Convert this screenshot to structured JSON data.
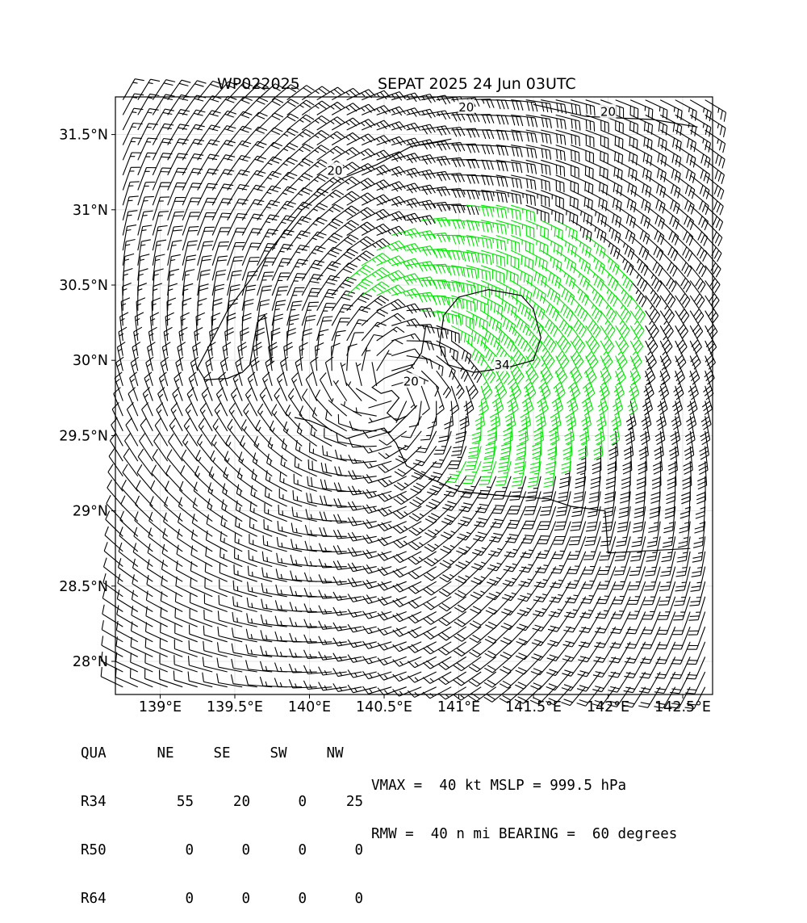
{
  "title_left": "WP022025",
  "title_right": "SEPAT 2025 24 Jun 03UTC",
  "quadrant_table": {
    "header": [
      "QUA",
      "NE",
      "SE",
      "SW",
      "NW"
    ],
    "rows": [
      {
        "label": "R34",
        "values": [
          "55",
          "20",
          "0",
          "25"
        ]
      },
      {
        "label": "R50",
        "values": [
          "0",
          "0",
          "0",
          "0"
        ]
      },
      {
        "label": "R64",
        "values": [
          "0",
          "0",
          "0",
          "0"
        ]
      }
    ]
  },
  "stats": {
    "line1": "VMAX =  40 kt MSLP = 999.5 hPa",
    "line2": "RMW =  40 n mi BEARING =  60 degrees"
  },
  "colors": {
    "barb_below_34": "#000000",
    "barb_34_to_50": "#00e400",
    "barb_50_to_64": "#f0b820",
    "contour": "#000000",
    "grid": "#dddddd"
  },
  "chart_data": {
    "type": "wind-barb-map",
    "storm_id": "WP022025",
    "storm_name": "SEPAT",
    "valid_time": "2025 24 Jun 03UTC",
    "units": "kt",
    "xlim": [
      138.7,
      142.7
    ],
    "ylim": [
      27.78,
      31.75
    ],
    "x_ticks": [
      139,
      139.5,
      140,
      140.5,
      141,
      141.5,
      142,
      142.5
    ],
    "x_tick_labels": [
      "139°E",
      "139.5°E",
      "140°E",
      "140.5°E",
      "141°E",
      "141.5°E",
      "142°E",
      "142.5°E"
    ],
    "y_ticks": [
      28,
      28.5,
      29,
      29.5,
      30,
      30.5,
      31,
      31.5
    ],
    "y_tick_labels": [
      "28°N",
      "28.5°N",
      "29°N",
      "29.5°N",
      "30°N",
      "30.5°N",
      "31°N",
      "31.5°N"
    ],
    "grid": true,
    "center": {
      "lon": 140.55,
      "lat": 29.82
    },
    "barb_spacing_deg": 0.1,
    "vmax_kt": 40,
    "mslp_hpa": 999.5,
    "rmw_nmi": 40,
    "bearing_deg": 60,
    "contour_levels": [
      20,
      34
    ],
    "contour_labels": [
      {
        "text": "20",
        "lon": 141.05,
        "lat": 31.68
      },
      {
        "text": "20",
        "lon": 142.0,
        "lat": 31.65
      },
      {
        "text": "20",
        "lon": 140.17,
        "lat": 31.26
      },
      {
        "text": "20",
        "lon": 140.68,
        "lat": 29.86
      },
      {
        "text": "34",
        "lon": 141.29,
        "lat": 29.97
      }
    ],
    "contour_34": [
      [
        141.0,
        30.42
      ],
      [
        141.2,
        30.47
      ],
      [
        141.42,
        30.43
      ],
      [
        141.5,
        30.34
      ],
      [
        141.55,
        30.15
      ],
      [
        141.5,
        30.0
      ],
      [
        141.32,
        29.95
      ],
      [
        141.1,
        29.92
      ],
      [
        140.93,
        29.97
      ],
      [
        140.87,
        30.1
      ],
      [
        140.9,
        30.3
      ]
    ],
    "contour_20_west": [
      [
        140.95,
        31.47
      ],
      [
        140.68,
        31.42
      ],
      [
        140.45,
        31.3
      ],
      [
        140.2,
        31.2
      ],
      [
        139.95,
        31.0
      ],
      [
        139.75,
        30.75
      ],
      [
        139.6,
        30.53
      ],
      [
        139.45,
        30.33
      ],
      [
        139.33,
        30.1
      ],
      [
        139.25,
        29.95
      ],
      [
        139.3,
        29.87
      ],
      [
        139.45,
        29.88
      ],
      [
        139.55,
        29.92
      ],
      [
        139.6,
        29.97
      ],
      [
        139.65,
        30.25
      ],
      [
        139.7,
        30.3
      ],
      [
        139.75,
        29.98
      ]
    ],
    "contour_20_inner": [
      [
        140.78,
        30.23
      ],
      [
        140.75,
        30.05
      ],
      [
        140.68,
        29.95
      ],
      [
        140.6,
        29.92
      ],
      [
        140.5,
        29.88
      ],
      [
        140.42,
        29.82
      ],
      [
        140.48,
        29.78
      ],
      [
        140.55,
        29.8
      ],
      [
        140.6,
        29.75
      ],
      [
        140.52,
        29.65
      ],
      [
        140.58,
        29.6
      ],
      [
        140.65,
        29.63
      ],
      [
        140.72,
        29.7
      ]
    ],
    "contour_20_south": [
      [
        139.9,
        29.62
      ],
      [
        140.0,
        29.6
      ],
      [
        140.12,
        29.55
      ],
      [
        140.25,
        29.48
      ],
      [
        140.38,
        29.52
      ],
      [
        140.5,
        29.55
      ],
      [
        140.58,
        29.45
      ],
      [
        140.65,
        29.3
      ],
      [
        140.8,
        29.22
      ],
      [
        141.0,
        29.13
      ],
      [
        141.3,
        29.1
      ],
      [
        141.6,
        29.08
      ],
      [
        141.75,
        29.03
      ],
      [
        141.98,
        29.0
      ],
      [
        142.0,
        28.72
      ],
      [
        142.55,
        28.75
      ]
    ],
    "contour_20_ne": [
      [
        141.5,
        31.7
      ],
      [
        141.85,
        31.62
      ],
      [
        142.3,
        31.6
      ],
      [
        142.6,
        31.55
      ]
    ]
  }
}
